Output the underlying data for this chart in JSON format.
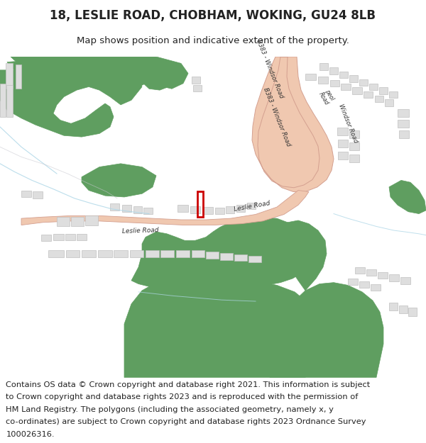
{
  "title": "18, LESLIE ROAD, CHOBHAM, WOKING, GU24 8LB",
  "subtitle": "Map shows position and indicative extent of the property.",
  "footer_lines": [
    "Contains OS data © Crown copyright and database right 2021. This information is subject",
    "to Crown copyright and database rights 2023 and is reproduced with the permission of",
    "HM Land Registry. The polygons (including the associated geometry, namely x, y",
    "co-ordinates) are subject to Crown copyright and database rights 2023 Ordnance Survey",
    "100026316."
  ],
  "map_bg": "#f7f7f5",
  "title_fontsize": 12,
  "subtitle_fontsize": 9.5,
  "footer_fontsize": 8.2,
  "green_color": "#5f9e60",
  "road_fill": "#f0c8b0",
  "road_edge": "#d4a090",
  "building_fill": "#dedede",
  "building_edge": "#c0c0c0",
  "property_color": "#cc0000",
  "blue_line": "#b0d8e8",
  "gray_line": "#c8c8d0",
  "text_color": "#222222"
}
